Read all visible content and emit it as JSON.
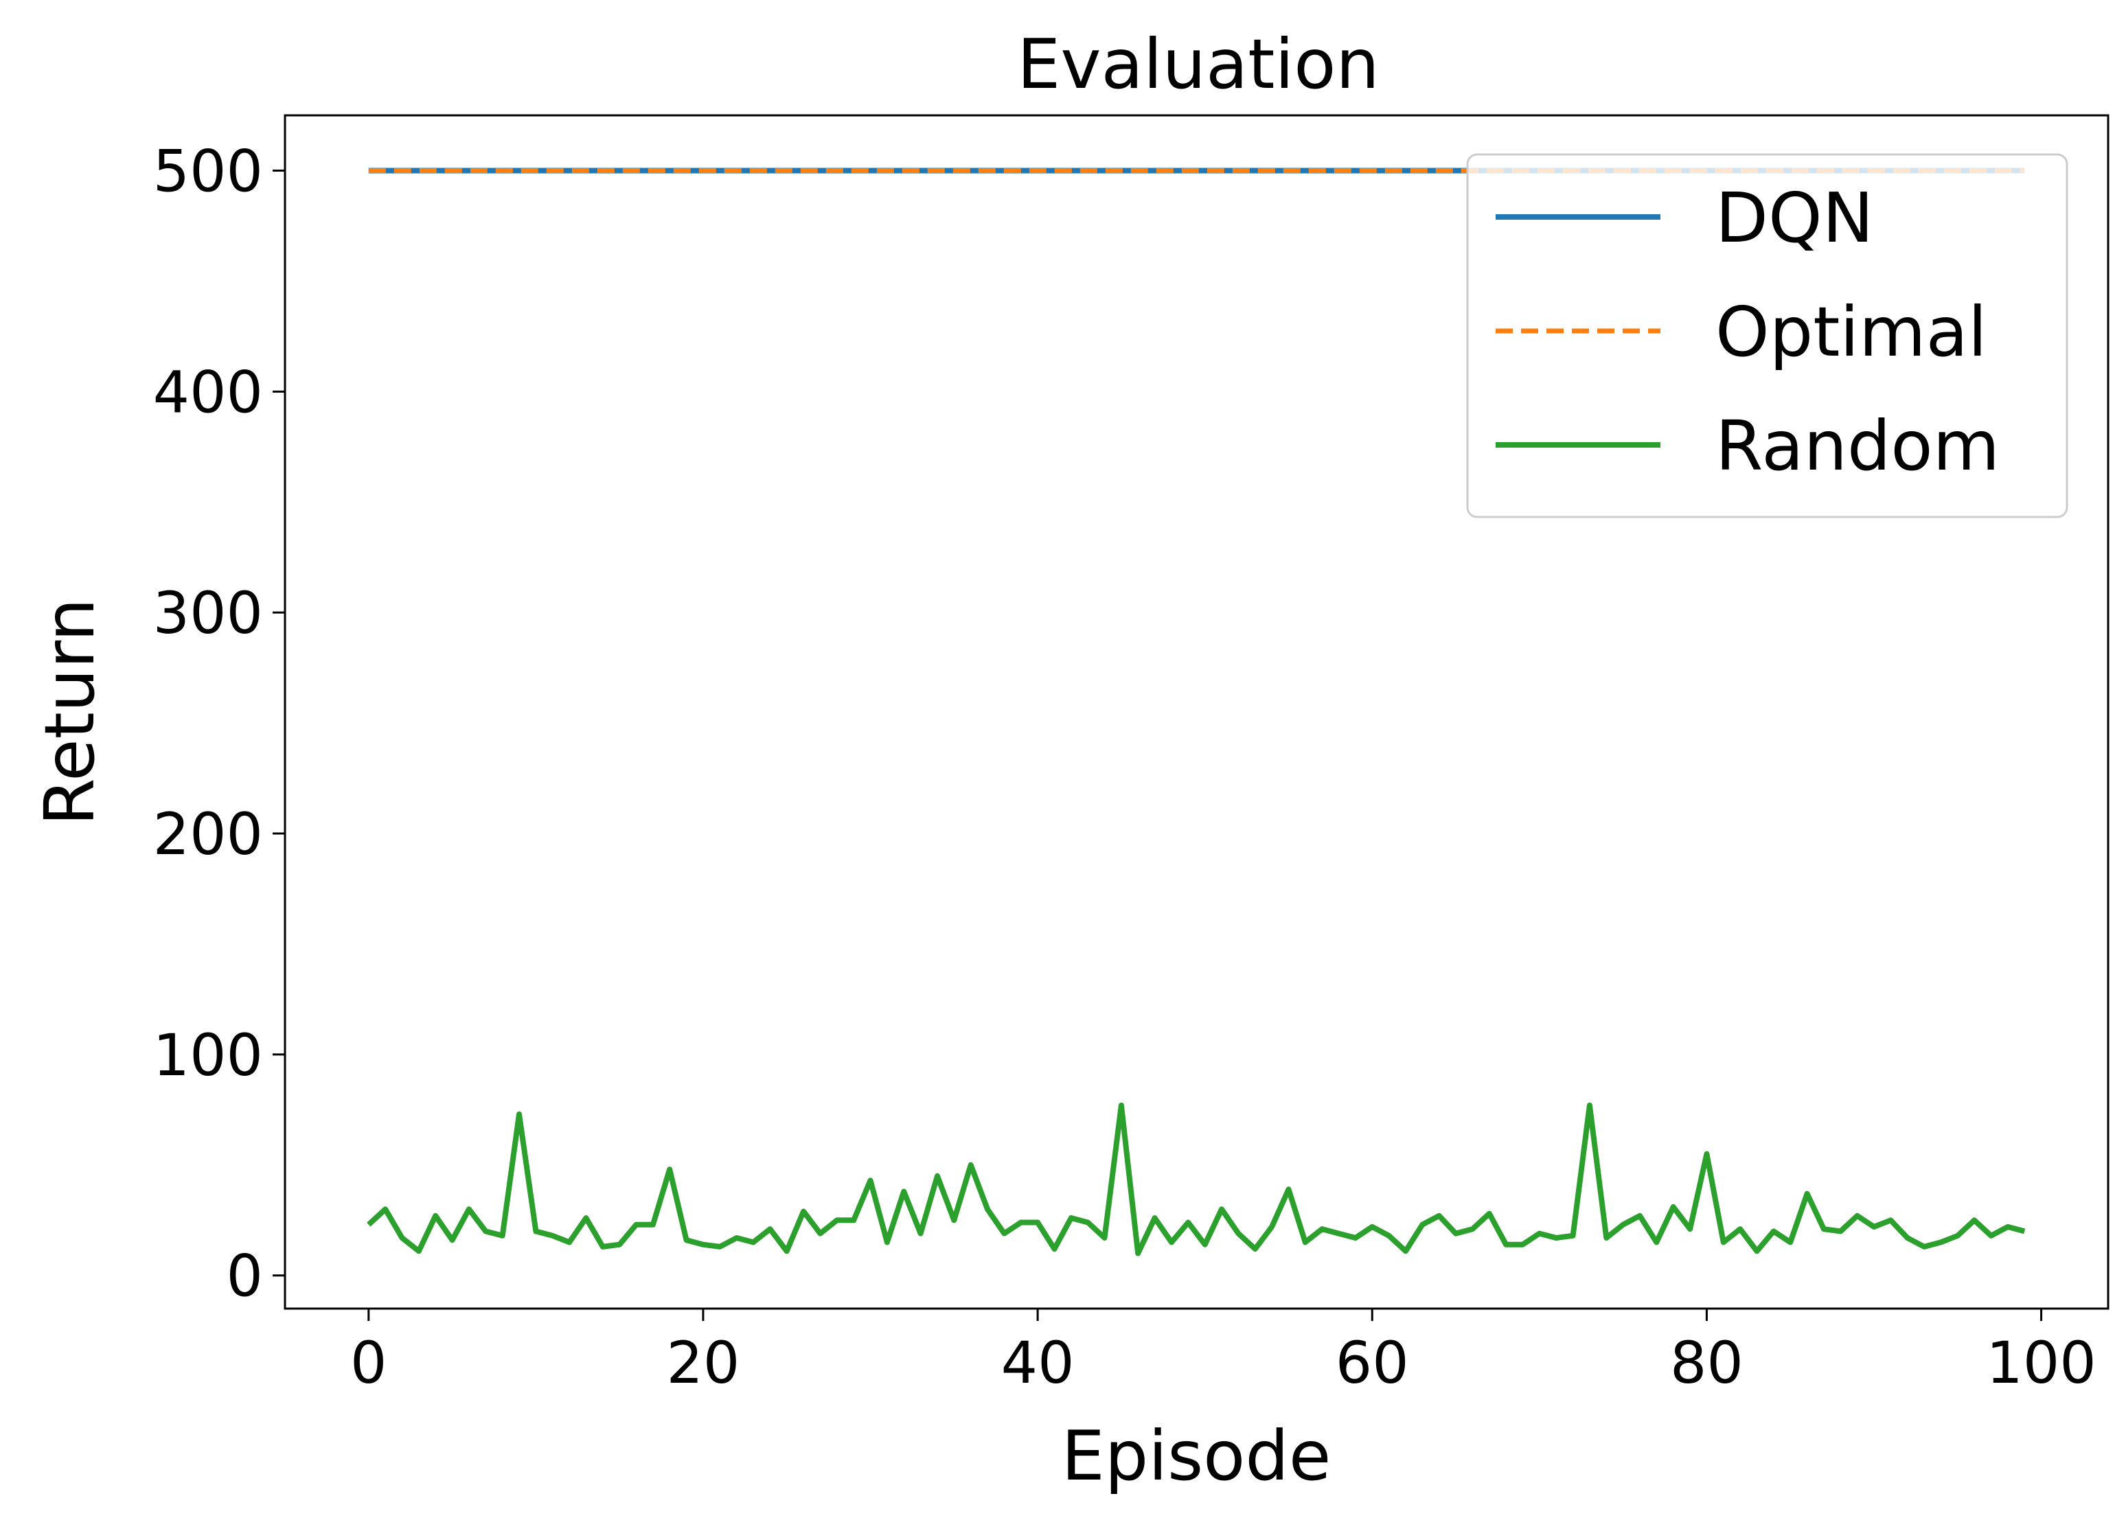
{
  "chart_data": {
    "type": "line",
    "title": "Evaluation",
    "xlabel": "Episode",
    "ylabel": "Return",
    "xlim": [
      -5,
      104
    ],
    "ylim": [
      -15,
      525
    ],
    "xticks": [
      0,
      20,
      40,
      60,
      80,
      100
    ],
    "yticks": [
      0,
      100,
      200,
      300,
      400,
      500
    ],
    "grid": false,
    "legend_position": "top-right",
    "series": [
      {
        "name": "DQN",
        "color": "#1f77b4",
        "style": "solid",
        "x_range": [
          0,
          99
        ],
        "constant_value": 500
      },
      {
        "name": "Optimal",
        "color": "#ff7f0e",
        "style": "dashed",
        "x_range": [
          0,
          99
        ],
        "constant_value": 500
      },
      {
        "name": "Random",
        "color": "#2ca02c",
        "style": "solid",
        "x_start": 0,
        "values": [
          23,
          30,
          17,
          11,
          27,
          16,
          30,
          20,
          18,
          73,
          20,
          18,
          15,
          26,
          13,
          14,
          23,
          23,
          48,
          16,
          14,
          13,
          17,
          15,
          21,
          11,
          29,
          19,
          25,
          25,
          43,
          15,
          38,
          19,
          45,
          25,
          50,
          30,
          19,
          24,
          24,
          12,
          26,
          24,
          17,
          77,
          10,
          26,
          15,
          24,
          14,
          30,
          19,
          12,
          22,
          39,
          15,
          21,
          19,
          17,
          22,
          18,
          11,
          23,
          27,
          19,
          21,
          28,
          14,
          14,
          19,
          17,
          18,
          77,
          17,
          23,
          27,
          15,
          31,
          21,
          55,
          15,
          21,
          11,
          20,
          15,
          37,
          21,
          20,
          27,
          22,
          25,
          17,
          13,
          15,
          18,
          25,
          18,
          22,
          20
        ]
      }
    ]
  }
}
